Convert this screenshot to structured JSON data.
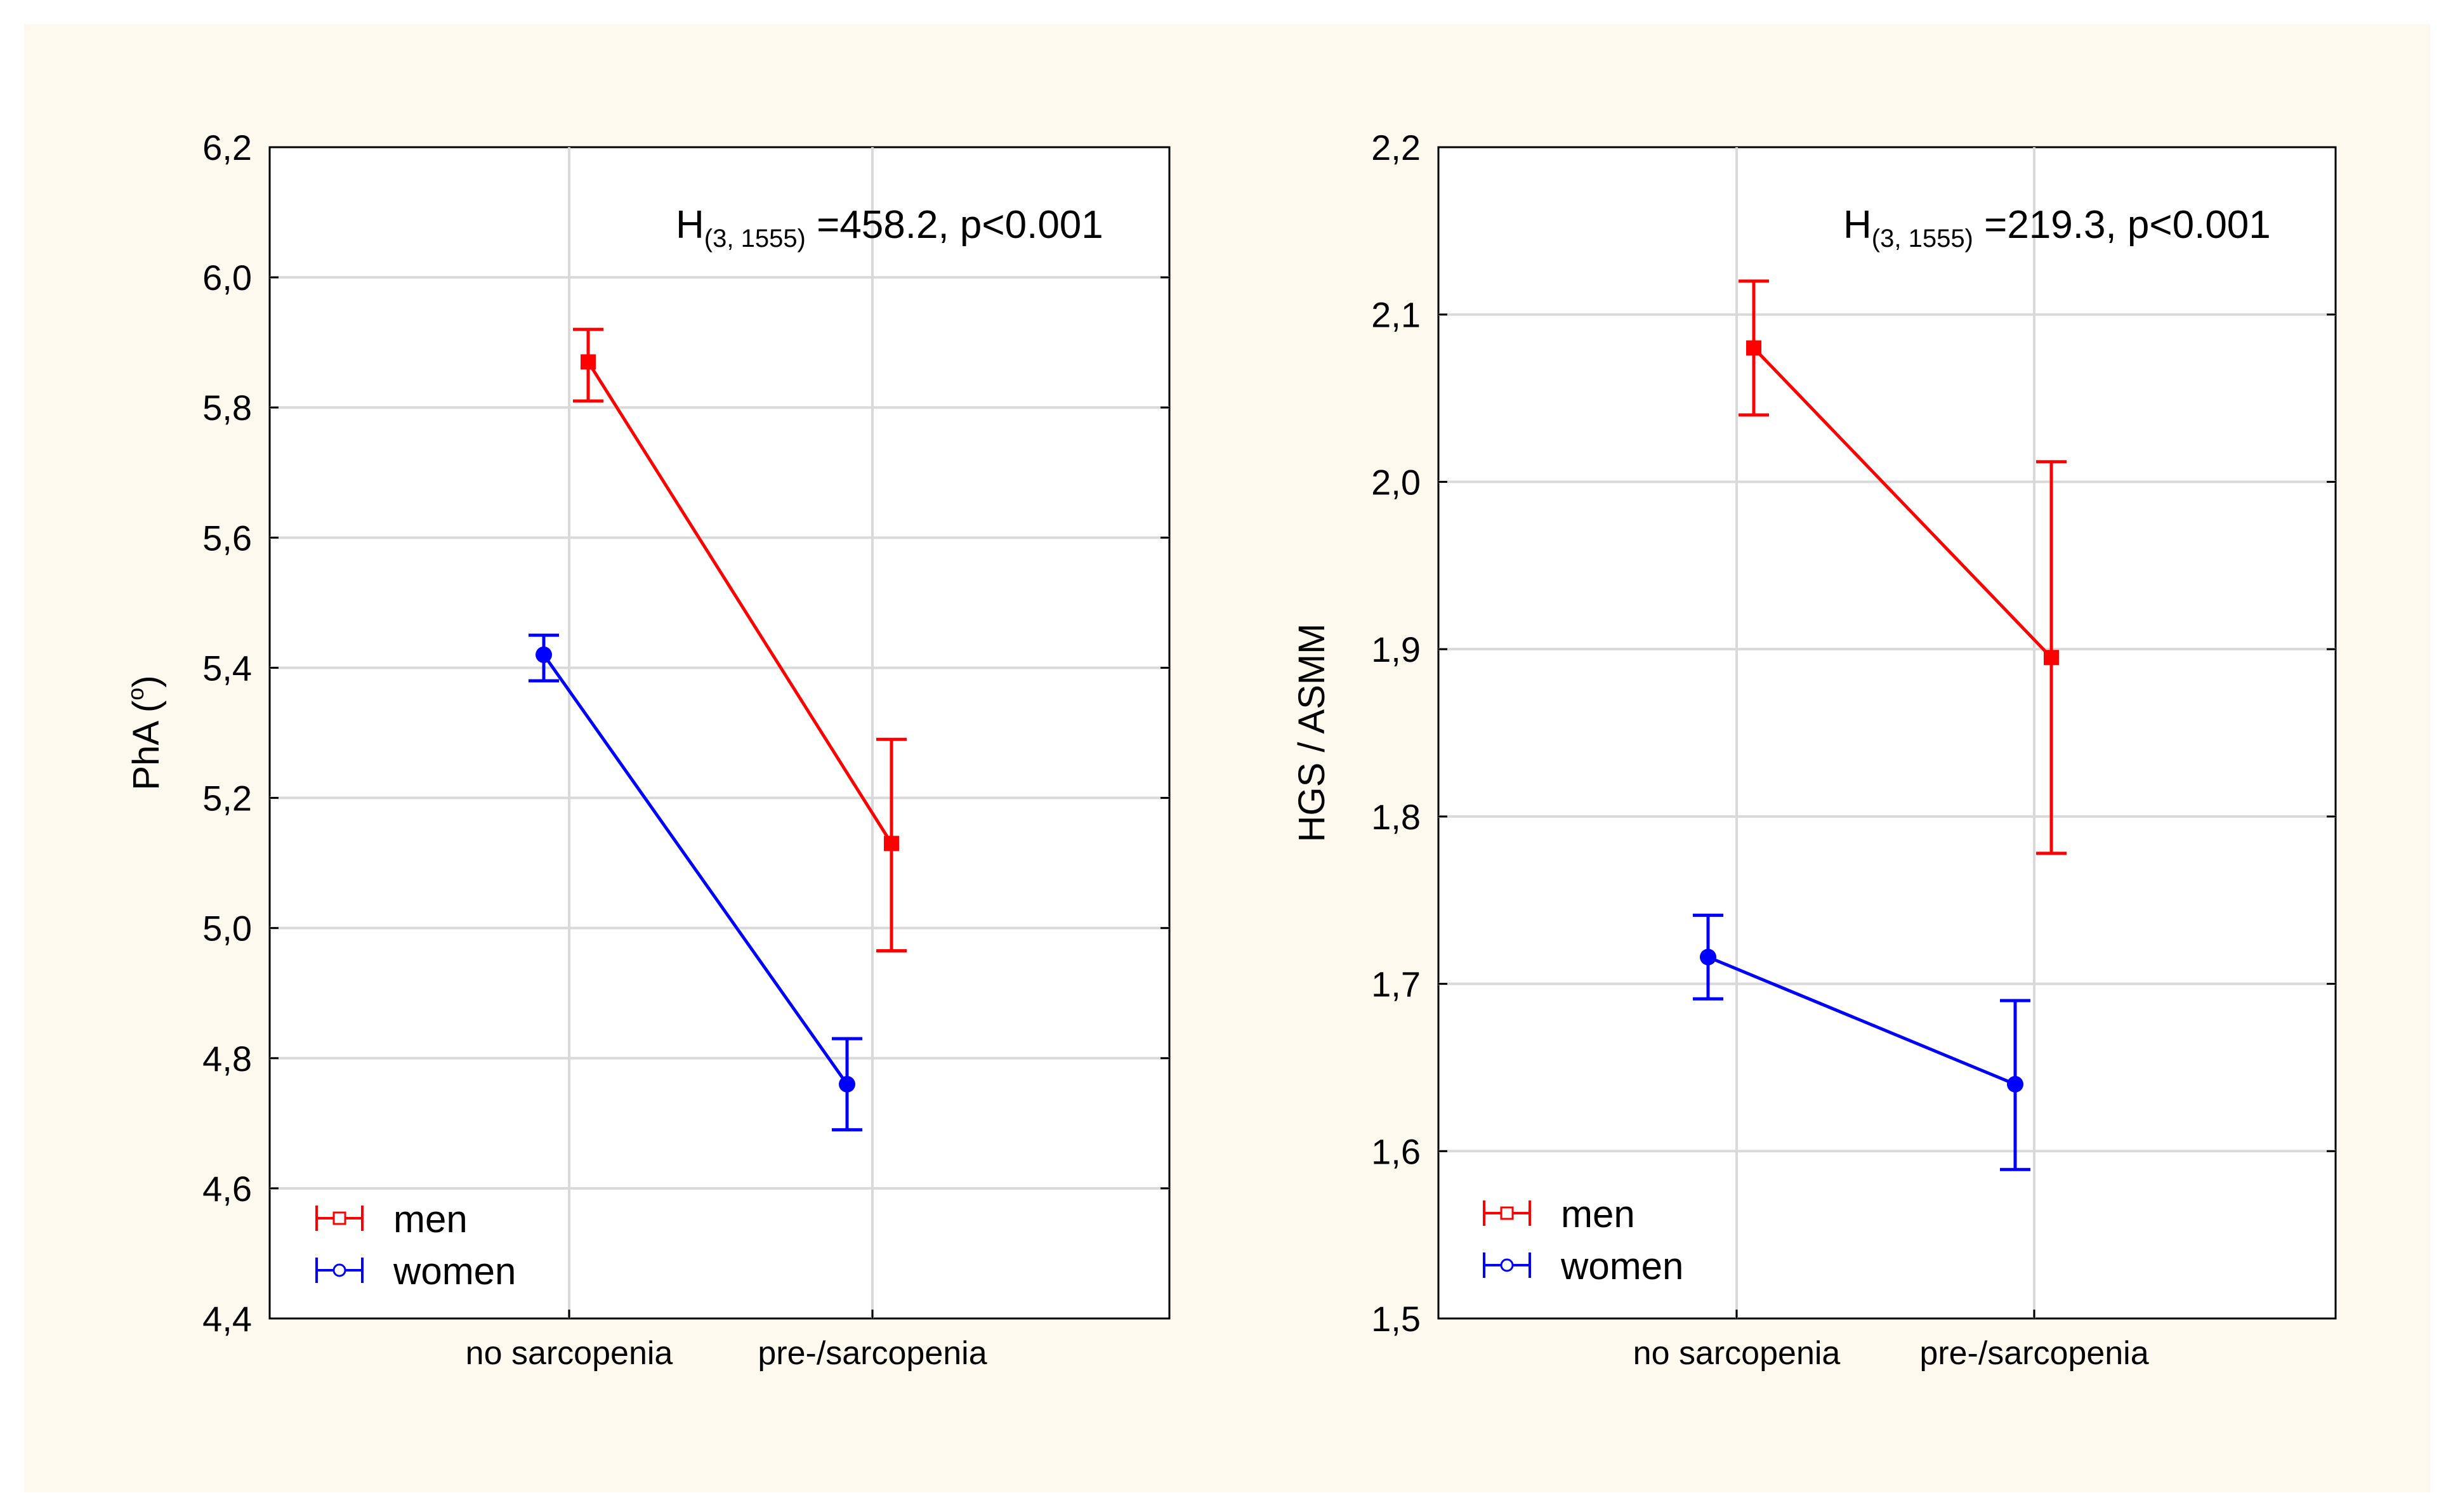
{
  "background_color": "#fdf9ee",
  "colors": {
    "men": "#ff0000",
    "women": "#0000ff",
    "grid": "#d9d9d9",
    "axis": "#000000"
  },
  "chart_data": [
    {
      "type": "line",
      "ylabel": "PhA (°)",
      "ylabel_main": "PhA (",
      "ylabel_sup": "o",
      "ylabel_close": ")",
      "categories": [
        "no sarcopenia",
        "pre-/sarcopenia"
      ],
      "ylim": [
        4.4,
        6.2
      ],
      "yticks": [
        4.4,
        4.6,
        4.8,
        5.0,
        5.2,
        5.4,
        5.6,
        5.8,
        6.0,
        6.2
      ],
      "ytick_labels": [
        "4,4",
        "4,6",
        "4,8",
        "5,0",
        "5,2",
        "5,4",
        "5,6",
        "5,8",
        "6,0",
        "6,2"
      ],
      "annotation": {
        "main": "H",
        "sub": "(3, 1555)",
        "rest": " =458.2,  p<0.001"
      },
      "legend": {
        "position": "bottom-left",
        "entries": [
          "men",
          "women"
        ]
      },
      "series": [
        {
          "name": "men",
          "values": [
            5.87,
            5.13
          ],
          "lower": [
            5.81,
            4.965
          ],
          "upper": [
            5.92,
            5.29
          ]
        },
        {
          "name": "women",
          "values": [
            5.42,
            4.76
          ],
          "lower": [
            5.38,
            4.69
          ],
          "upper": [
            5.45,
            4.83
          ]
        }
      ]
    },
    {
      "type": "line",
      "ylabel": "HGS / ASMM",
      "categories": [
        "no sarcopenia",
        "pre-/sarcopenia"
      ],
      "ylim": [
        1.5,
        2.2
      ],
      "yticks": [
        1.5,
        1.6,
        1.7,
        1.8,
        1.9,
        2.0,
        2.1,
        2.2
      ],
      "ytick_labels": [
        "1,5",
        "1,6",
        "1,7",
        "1,8",
        "1,9",
        "2,0",
        "2,1",
        "2,2"
      ],
      "annotation": {
        "main": "H",
        "sub": "(3, 1555)",
        "rest": " =219.3,  p<0.001"
      },
      "legend": {
        "position": "bottom-left",
        "entries": [
          "men",
          "women"
        ]
      },
      "series": [
        {
          "name": "men",
          "values": [
            2.08,
            1.895
          ],
          "lower": [
            2.04,
            1.778
          ],
          "upper": [
            2.12,
            2.012
          ]
        },
        {
          "name": "women",
          "values": [
            1.716,
            1.64
          ],
          "lower": [
            1.691,
            1.589
          ],
          "upper": [
            1.741,
            1.69
          ]
        }
      ]
    }
  ]
}
